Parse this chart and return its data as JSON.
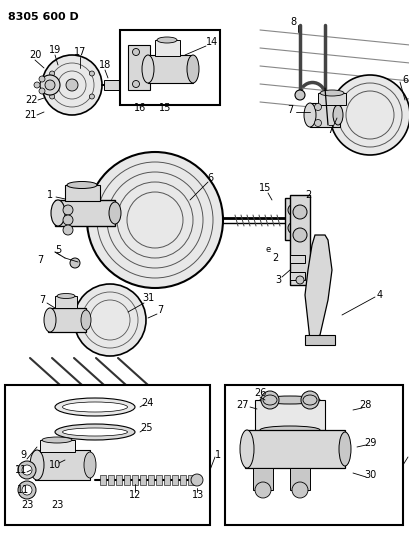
{
  "title": "8305 600 D",
  "bg_color": "#ffffff",
  "lc": "#000000",
  "tc": "#000000",
  "gray1": "#c8c8c8",
  "gray2": "#d8d8d8",
  "gray3": "#e8e8e8",
  "gray4": "#b0b0b0",
  "fig_width": 4.1,
  "fig_height": 5.33,
  "dpi": 100
}
